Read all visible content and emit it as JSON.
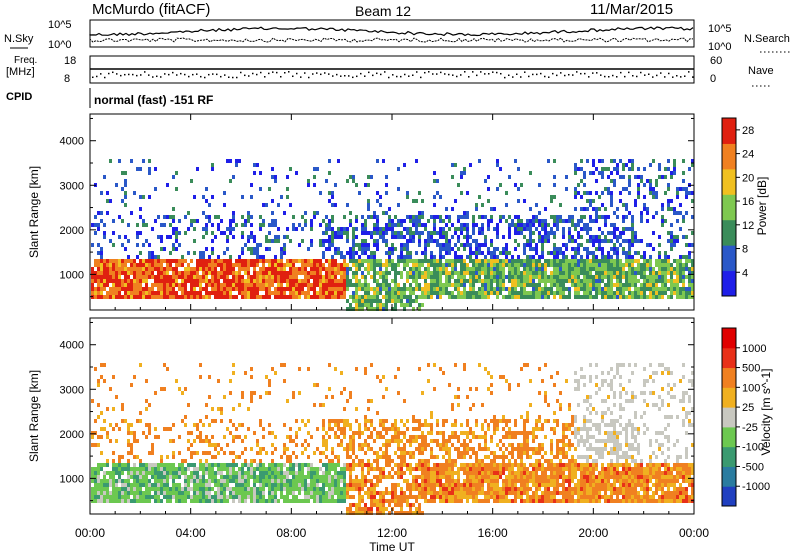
{
  "header": {
    "station": "McMurdo (fitACF)",
    "beam": "Beam 12",
    "date": "11/Mar/2015"
  },
  "top_panels": {
    "nsky_label": "N.Sky",
    "nsky_tick_high": "10^5",
    "nsky_tick_low": "10^0",
    "nsearch_label": "N.Search",
    "nsearch_tick_high": "10^5",
    "nsearch_tick_low": "10^0",
    "freq_label_line1": "Freq.",
    "freq_label_line2": "[MHz]",
    "freq_tick_high": "18",
    "freq_tick_low": "8",
    "nave_label": "Nave",
    "nave_tick_high": "60",
    "nave_tick_low": "0",
    "cpid_label": "CPID",
    "cpid_text": "normal (fast) -151 RF"
  },
  "chart_data": [
    {
      "type": "heatmap",
      "name": "power",
      "ylabel": "Slant Range [km]",
      "yticks": [
        "1000",
        "2000",
        "3000",
        "4000"
      ],
      "ylim": [
        200,
        4600
      ],
      "colorbar_label": "Power [dB]",
      "colorbar_ticks": [
        "4",
        "8",
        "12",
        "16",
        "20",
        "24",
        "28"
      ],
      "colorbar_colors": [
        "#1f1fe8",
        "#2a58c8",
        "#3a8c5a",
        "#7ec850",
        "#f0c020",
        "#f08020",
        "#e02010"
      ],
      "colorbar_range": [
        0,
        30
      ]
    },
    {
      "type": "heatmap",
      "name": "velocity",
      "ylabel": "Slant Range [km]",
      "yticks": [
        "1000",
        "2000",
        "3000",
        "4000"
      ],
      "ylim": [
        200,
        4600
      ],
      "colorbar_label": "Velocity [m s^-1]",
      "colorbar_ticks": [
        "1000",
        "500",
        "100",
        "25",
        "-25",
        "-100",
        "-500",
        "-1000"
      ],
      "colorbar_colors": [
        "#2040c0",
        "#2a7ca0",
        "#3a9a70",
        "#6cc850",
        "#c8c8c0",
        "#f0b020",
        "#f08020",
        "#e83018",
        "#e00000"
      ]
    }
  ],
  "xaxis": {
    "ticks": [
      "00:00",
      "04:00",
      "08:00",
      "12:00",
      "16:00",
      "20:00",
      "00:00"
    ],
    "label": "Time UT"
  }
}
